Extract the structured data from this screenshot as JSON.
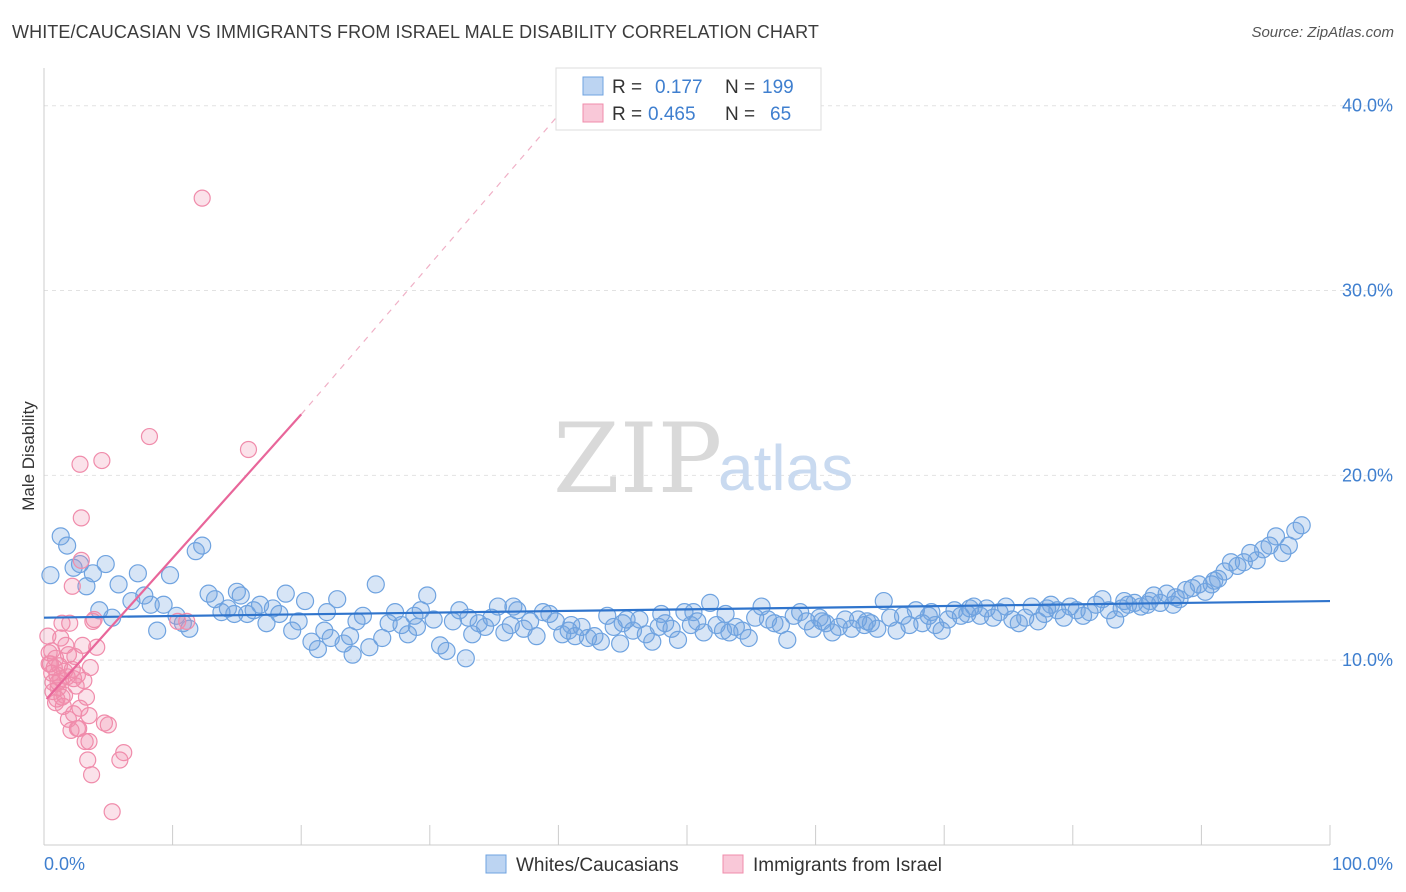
{
  "header": {
    "title": "WHITE/CAUCASIAN VS IMMIGRANTS FROM ISRAEL MALE DISABILITY CORRELATION CHART",
    "source": "Source: ZipAtlas.com"
  },
  "watermark": {
    "zip": "ZIP",
    "atlas": "atlas"
  },
  "stats": [
    {
      "r_label": "R =",
      "r_value": "0.177",
      "n_label": "N =",
      "n_value": "199"
    },
    {
      "r_label": "R =",
      "r_value": "0.465",
      "n_label": "N =",
      "n_value": "65"
    }
  ],
  "legend": {
    "items": [
      {
        "label": "Whites/Caucasians",
        "color": "#6fa3e0"
      },
      {
        "label": "Immigrants from Israel",
        "color": "#f08cab"
      }
    ]
  },
  "chart_data": {
    "type": "scatter",
    "xlabel": "",
    "ylabel": "Male Disability",
    "x_ticks": [
      "0.0%",
      "100.0%"
    ],
    "y_ticks": [
      "10.0%",
      "20.0%",
      "30.0%",
      "40.0%"
    ],
    "xlim": [
      0,
      100
    ],
    "ylim": [
      0,
      41.5
    ],
    "grid": true,
    "legend_position": "bottom",
    "colors": {
      "blue": "#6fa3e0",
      "blue_line": "#2f74cc",
      "pink": "#f08cab",
      "pink_line": "#e8669a"
    },
    "series": [
      {
        "name": "Whites/Caucasians",
        "trend": {
          "x0": 0,
          "y0": 12.3,
          "x1": 100,
          "y1": 13.2
        },
        "points": [
          [
            0.5,
            14.6
          ],
          [
            1.3,
            16.7
          ],
          [
            1.8,
            16.2
          ],
          [
            2.3,
            15.0
          ],
          [
            2.8,
            15.2
          ],
          [
            3.3,
            14.0
          ],
          [
            3.8,
            14.7
          ],
          [
            4.3,
            12.7
          ],
          [
            4.8,
            15.2
          ],
          [
            5.3,
            12.3
          ],
          [
            5.8,
            14.1
          ],
          [
            6.8,
            13.2
          ],
          [
            7.3,
            14.7
          ],
          [
            7.8,
            13.5
          ],
          [
            8.3,
            13.0
          ],
          [
            8.8,
            11.6
          ],
          [
            9.3,
            13.0
          ],
          [
            9.8,
            14.6
          ],
          [
            10.3,
            12.4
          ],
          [
            10.8,
            12.0
          ],
          [
            11.3,
            11.7
          ],
          [
            11.8,
            15.9
          ],
          [
            12.3,
            16.2
          ],
          [
            12.8,
            13.6
          ],
          [
            13.3,
            13.3
          ],
          [
            13.8,
            12.6
          ],
          [
            14.3,
            12.8
          ],
          [
            14.8,
            12.5
          ],
          [
            15.3,
            13.5
          ],
          [
            15.8,
            12.5
          ],
          [
            16.3,
            12.7
          ],
          [
            16.8,
            13.0
          ],
          [
            17.3,
            12.0
          ],
          [
            17.8,
            12.8
          ],
          [
            18.3,
            12.5
          ],
          [
            18.8,
            13.6
          ],
          [
            19.3,
            11.6
          ],
          [
            19.8,
            12.1
          ],
          [
            20.3,
            13.2
          ],
          [
            20.8,
            11.0
          ],
          [
            21.3,
            10.6
          ],
          [
            21.8,
            11.6
          ],
          [
            22.3,
            11.2
          ],
          [
            22.8,
            13.3
          ],
          [
            23.3,
            10.9
          ],
          [
            23.8,
            11.3
          ],
          [
            24.3,
            12.1
          ],
          [
            24.8,
            12.4
          ],
          [
            25.3,
            10.7
          ],
          [
            25.8,
            14.1
          ],
          [
            26.3,
            11.2
          ],
          [
            26.8,
            12.0
          ],
          [
            27.3,
            12.6
          ],
          [
            27.8,
            11.9
          ],
          [
            28.3,
            11.4
          ],
          [
            28.8,
            12.4
          ],
          [
            29.3,
            12.7
          ],
          [
            29.8,
            13.5
          ],
          [
            30.3,
            12.2
          ],
          [
            30.8,
            10.8
          ],
          [
            31.3,
            10.5
          ],
          [
            31.8,
            12.1
          ],
          [
            32.3,
            12.7
          ],
          [
            32.8,
            10.1
          ],
          [
            33.3,
            11.4
          ],
          [
            33.8,
            12.0
          ],
          [
            34.3,
            11.8
          ],
          [
            34.8,
            12.3
          ],
          [
            35.3,
            12.9
          ],
          [
            35.8,
            11.5
          ],
          [
            36.3,
            11.9
          ],
          [
            36.8,
            12.7
          ],
          [
            37.3,
            11.7
          ],
          [
            37.8,
            12.1
          ],
          [
            38.3,
            11.3
          ],
          [
            38.8,
            12.6
          ],
          [
            39.3,
            12.5
          ],
          [
            39.8,
            12.1
          ],
          [
            40.3,
            11.4
          ],
          [
            40.8,
            11.6
          ],
          [
            41.3,
            11.3
          ],
          [
            41.8,
            11.8
          ],
          [
            42.3,
            11.2
          ],
          [
            42.8,
            11.3
          ],
          [
            43.3,
            11.0
          ],
          [
            43.8,
            12.4
          ],
          [
            44.3,
            11.8
          ],
          [
            44.8,
            10.9
          ],
          [
            45.3,
            12.2
          ],
          [
            45.8,
            11.6
          ],
          [
            46.3,
            12.2
          ],
          [
            46.8,
            11.4
          ],
          [
            47.3,
            11.0
          ],
          [
            47.8,
            11.8
          ],
          [
            48.3,
            12.0
          ],
          [
            48.8,
            11.7
          ],
          [
            49.3,
            11.1
          ],
          [
            49.8,
            12.6
          ],
          [
            50.3,
            11.9
          ],
          [
            50.8,
            12.1
          ],
          [
            51.3,
            11.5
          ],
          [
            51.8,
            13.1
          ],
          [
            52.3,
            11.9
          ],
          [
            52.8,
            11.6
          ],
          [
            53.3,
            11.5
          ],
          [
            53.8,
            11.8
          ],
          [
            54.3,
            11.6
          ],
          [
            54.8,
            11.2
          ],
          [
            55.3,
            12.3
          ],
          [
            55.8,
            12.9
          ],
          [
            56.3,
            12.2
          ],
          [
            56.8,
            12.0
          ],
          [
            57.3,
            11.9
          ],
          [
            57.8,
            11.1
          ],
          [
            58.3,
            12.4
          ],
          [
            58.8,
            12.6
          ],
          [
            59.3,
            12.1
          ],
          [
            59.8,
            11.7
          ],
          [
            60.3,
            12.3
          ],
          [
            60.8,
            12.0
          ],
          [
            61.3,
            11.5
          ],
          [
            61.8,
            11.8
          ],
          [
            62.3,
            12.2
          ],
          [
            62.8,
            11.7
          ],
          [
            63.3,
            12.2
          ],
          [
            63.8,
            11.9
          ],
          [
            64.3,
            12.0
          ],
          [
            64.8,
            11.7
          ],
          [
            65.3,
            13.2
          ],
          [
            65.8,
            12.3
          ],
          [
            66.3,
            11.6
          ],
          [
            66.8,
            12.4
          ],
          [
            67.3,
            11.9
          ],
          [
            67.8,
            12.7
          ],
          [
            68.3,
            12.0
          ],
          [
            68.8,
            12.4
          ],
          [
            69.3,
            11.9
          ],
          [
            69.8,
            11.6
          ],
          [
            70.3,
            12.2
          ],
          [
            70.8,
            12.7
          ],
          [
            71.3,
            12.4
          ],
          [
            71.8,
            12.5
          ],
          [
            72.3,
            12.9
          ],
          [
            72.8,
            12.4
          ],
          [
            73.3,
            12.8
          ],
          [
            73.8,
            12.3
          ],
          [
            74.3,
            12.6
          ],
          [
            74.8,
            12.9
          ],
          [
            75.3,
            12.2
          ],
          [
            75.8,
            12.0
          ],
          [
            76.3,
            12.3
          ],
          [
            76.8,
            12.9
          ],
          [
            77.3,
            12.1
          ],
          [
            77.8,
            12.5
          ],
          [
            78.3,
            13.0
          ],
          [
            78.8,
            12.7
          ],
          [
            79.3,
            12.3
          ],
          [
            79.8,
            12.9
          ],
          [
            80.3,
            12.7
          ],
          [
            80.8,
            12.4
          ],
          [
            81.3,
            12.6
          ],
          [
            81.8,
            13.0
          ],
          [
            82.3,
            13.3
          ],
          [
            82.8,
            12.7
          ],
          [
            83.3,
            12.2
          ],
          [
            83.8,
            12.8
          ],
          [
            84.3,
            13.0
          ],
          [
            84.8,
            13.1
          ],
          [
            85.3,
            12.9
          ],
          [
            85.8,
            13.0
          ],
          [
            86.3,
            13.5
          ],
          [
            86.8,
            13.1
          ],
          [
            87.3,
            13.6
          ],
          [
            87.8,
            13.0
          ],
          [
            88.3,
            13.3
          ],
          [
            88.8,
            13.8
          ],
          [
            89.3,
            13.9
          ],
          [
            89.8,
            14.1
          ],
          [
            90.3,
            13.7
          ],
          [
            90.8,
            14.1
          ],
          [
            91.3,
            14.4
          ],
          [
            91.8,
            14.8
          ],
          [
            92.3,
            15.3
          ],
          [
            92.8,
            15.1
          ],
          [
            93.3,
            15.3
          ],
          [
            93.8,
            15.8
          ],
          [
            94.3,
            15.4
          ],
          [
            94.8,
            16.0
          ],
          [
            95.3,
            16.2
          ],
          [
            95.8,
            16.7
          ],
          [
            96.3,
            15.8
          ],
          [
            96.8,
            16.2
          ],
          [
            97.3,
            17.0
          ],
          [
            97.8,
            17.3
          ],
          [
            24.0,
            10.3
          ],
          [
            36.5,
            12.9
          ],
          [
            48.0,
            12.5
          ],
          [
            60.5,
            12.1
          ],
          [
            72.0,
            12.8
          ],
          [
            84.0,
            13.2
          ],
          [
            50.5,
            12.6
          ],
          [
            64.0,
            12.1
          ],
          [
            29.0,
            11.8
          ],
          [
            45.0,
            12.0
          ],
          [
            78.0,
            12.8
          ],
          [
            86.0,
            13.2
          ],
          [
            15.0,
            13.7
          ],
          [
            22.0,
            12.6
          ],
          [
            33.0,
            12.3
          ],
          [
            41.0,
            11.9
          ],
          [
            53.0,
            12.5
          ],
          [
            69.0,
            12.6
          ],
          [
            88.0,
            13.4
          ],
          [
            91.0,
            14.3
          ]
        ]
      },
      {
        "name": "Immigrants from Israel",
        "trend": {
          "x0": 0.2,
          "y0": 7.9,
          "x1": 20.0,
          "y1": 23.3
        },
        "trend_ext": {
          "x0": 20.0,
          "y0": 23.3,
          "x1": 40.5,
          "y1": 39.9
        },
        "points": [
          [
            0.3,
            11.3
          ],
          [
            0.4,
            10.4
          ],
          [
            0.5,
            9.8
          ],
          [
            0.6,
            9.3
          ],
          [
            0.7,
            8.8
          ],
          [
            0.8,
            9.6
          ],
          [
            0.9,
            10.1
          ],
          [
            1.0,
            9.2
          ],
          [
            1.1,
            8.5
          ],
          [
            1.2,
            9.7
          ],
          [
            1.3,
            9.0
          ],
          [
            1.4,
            8.0
          ],
          [
            1.5,
            7.5
          ],
          [
            1.6,
            9.4
          ],
          [
            1.7,
            10.8
          ],
          [
            1.8,
            9.1
          ],
          [
            1.9,
            6.8
          ],
          [
            2.0,
            12.0
          ],
          [
            2.1,
            6.2
          ],
          [
            2.2,
            9.5
          ],
          [
            2.3,
            7.1
          ],
          [
            2.4,
            10.2
          ],
          [
            2.5,
            8.6
          ],
          [
            2.6,
            9.2
          ],
          [
            2.7,
            6.3
          ],
          [
            2.8,
            7.4
          ],
          [
            2.9,
            15.4
          ],
          [
            3.0,
            10.8
          ],
          [
            3.1,
            8.9
          ],
          [
            3.2,
            5.6
          ],
          [
            3.3,
            8.0
          ],
          [
            3.4,
            4.6
          ],
          [
            3.5,
            5.6
          ],
          [
            3.6,
            9.6
          ],
          [
            3.7,
            3.8
          ],
          [
            3.8,
            12.1
          ],
          [
            3.9,
            12.2
          ],
          [
            4.1,
            10.7
          ],
          [
            4.5,
            20.8
          ],
          [
            4.7,
            6.6
          ],
          [
            5.0,
            6.5
          ],
          [
            5.3,
            1.8
          ],
          [
            5.9,
            4.6
          ],
          [
            6.2,
            5.0
          ],
          [
            8.2,
            22.1
          ],
          [
            10.4,
            12.1
          ],
          [
            11.1,
            12.1
          ],
          [
            12.3,
            35.0
          ],
          [
            15.9,
            21.4
          ],
          [
            2.2,
            14.0
          ],
          [
            2.8,
            20.6
          ],
          [
            2.9,
            17.7
          ],
          [
            1.4,
            12.0
          ],
          [
            0.9,
            7.7
          ],
          [
            1.6,
            8.1
          ],
          [
            2.6,
            6.3
          ],
          [
            0.4,
            9.8
          ],
          [
            1.1,
            8.8
          ],
          [
            0.7,
            8.3
          ],
          [
            1.9,
            10.3
          ],
          [
            1.3,
            11.2
          ],
          [
            2.3,
            9.0
          ],
          [
            3.5,
            7.0
          ],
          [
            0.6,
            10.5
          ],
          [
            1.0,
            7.9
          ]
        ]
      }
    ]
  }
}
